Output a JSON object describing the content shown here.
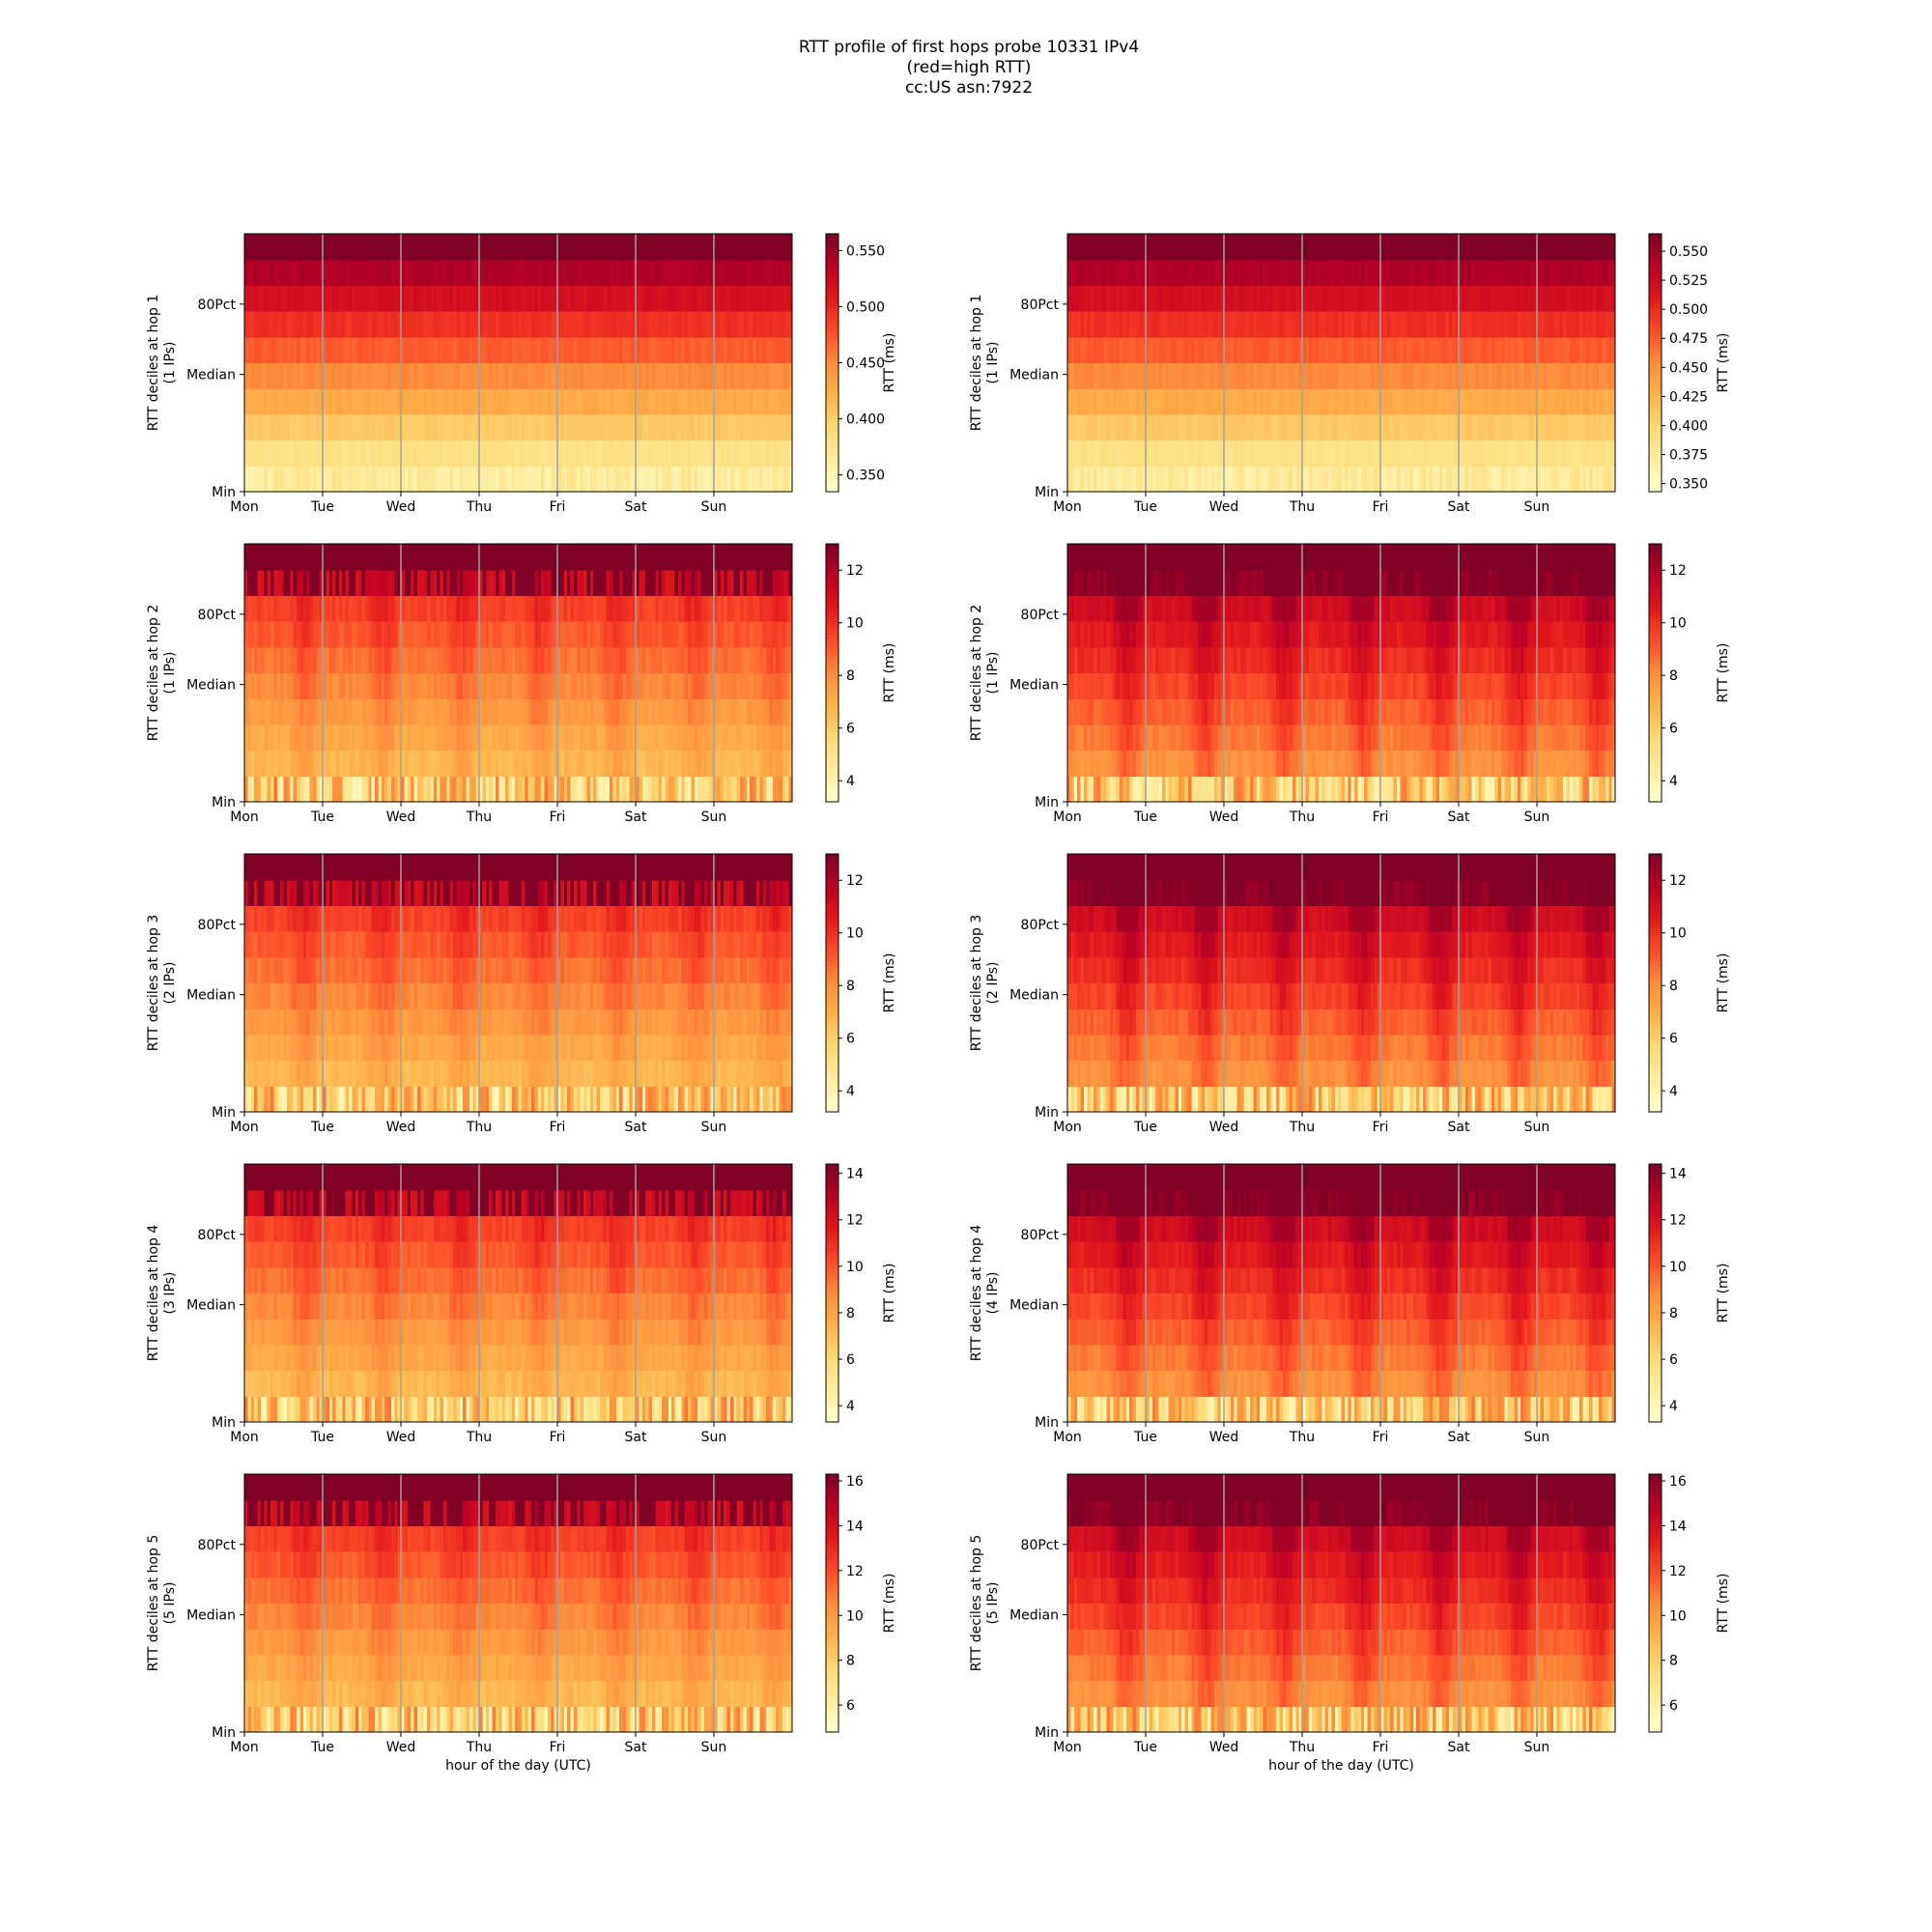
{
  "figure": {
    "title_lines": [
      "RTT profile of first hops probe 10331 IPv4",
      "(red=high RTT)",
      "cc:US asn:7922"
    ]
  },
  "chart_data": [
    {
      "type": "heatmap",
      "panel": "hop1-left",
      "ylabel_lines": [
        "RTT deciles at hop 1",
        "(1 IPs)"
      ],
      "y_ticks": [
        "Min",
        "Median",
        "80Pct"
      ],
      "x_ticks": [
        "Mon",
        "Tue",
        "Wed",
        "Thu",
        "Fri",
        "Sat",
        "Sun"
      ],
      "xlabel": "",
      "colorbar": {
        "label": "RTT (ms)",
        "ticks": [
          0.35,
          0.4,
          0.45,
          0.5,
          0.55
        ],
        "range": [
          0.335,
          0.565
        ]
      },
      "decile_rows": 10,
      "profile": "flat"
    },
    {
      "type": "heatmap",
      "panel": "hop1-right",
      "ylabel_lines": [
        "RTT deciles at hop 1",
        "(1 IPs)"
      ],
      "y_ticks": [
        "Min",
        "Median",
        "80Pct"
      ],
      "x_ticks": [
        "Mon",
        "Tue",
        "Wed",
        "Thu",
        "Fri",
        "Sat",
        "Sun"
      ],
      "xlabel": "",
      "colorbar": {
        "label": "RTT (ms)",
        "ticks": [
          0.35,
          0.375,
          0.4,
          0.425,
          0.45,
          0.475,
          0.5,
          0.525,
          0.55
        ],
        "range": [
          0.343,
          0.565
        ]
      },
      "decile_rows": 10,
      "profile": "flat"
    },
    {
      "type": "heatmap",
      "panel": "hop2-left",
      "ylabel_lines": [
        "RTT deciles at hop 2",
        "(1 IPs)"
      ],
      "y_ticks": [
        "Min",
        "Median",
        "80Pct"
      ],
      "x_ticks": [
        "Mon",
        "Tue",
        "Wed",
        "Thu",
        "Fri",
        "Sat",
        "Sun"
      ],
      "xlabel": "",
      "colorbar": {
        "label": "RTT (ms)",
        "ticks": [
          4,
          6,
          8,
          10,
          12
        ],
        "range": [
          3.2,
          13
        ]
      },
      "decile_rows": 10,
      "profile": "low"
    },
    {
      "type": "heatmap",
      "panel": "hop2-right",
      "ylabel_lines": [
        "RTT deciles at hop 2",
        "(1 IPs)"
      ],
      "y_ticks": [
        "Min",
        "Median",
        "80Pct"
      ],
      "x_ticks": [
        "Mon",
        "Tue",
        "Wed",
        "Thu",
        "Fri",
        "Sat",
        "Sun"
      ],
      "xlabel": "",
      "colorbar": {
        "label": "RTT (ms)",
        "ticks": [
          4,
          6,
          8,
          10,
          12
        ],
        "range": [
          3.2,
          13
        ]
      },
      "decile_rows": 10,
      "profile": "high"
    },
    {
      "type": "heatmap",
      "panel": "hop3-left",
      "ylabel_lines": [
        "RTT deciles at hop 3",
        "(2 IPs)"
      ],
      "y_ticks": [
        "Min",
        "Median",
        "80Pct"
      ],
      "x_ticks": [
        "Mon",
        "Tue",
        "Wed",
        "Thu",
        "Fri",
        "Sat",
        "Sun"
      ],
      "xlabel": "",
      "colorbar": {
        "label": "RTT (ms)",
        "ticks": [
          4,
          6,
          8,
          10,
          12
        ],
        "range": [
          3.2,
          13
        ]
      },
      "decile_rows": 10,
      "profile": "low"
    },
    {
      "type": "heatmap",
      "panel": "hop3-right",
      "ylabel_lines": [
        "RTT deciles at hop 3",
        "(2 IPs)"
      ],
      "y_ticks": [
        "Min",
        "Median",
        "80Pct"
      ],
      "x_ticks": [
        "Mon",
        "Tue",
        "Wed",
        "Thu",
        "Fri",
        "Sat",
        "Sun"
      ],
      "xlabel": "",
      "colorbar": {
        "label": "RTT (ms)",
        "ticks": [
          4,
          6,
          8,
          10,
          12
        ],
        "range": [
          3.2,
          13
        ]
      },
      "decile_rows": 10,
      "profile": "high"
    },
    {
      "type": "heatmap",
      "panel": "hop4-left",
      "ylabel_lines": [
        "RTT deciles at hop 4",
        "(3 IPs)"
      ],
      "y_ticks": [
        "Min",
        "Median",
        "80Pct"
      ],
      "x_ticks": [
        "Mon",
        "Tue",
        "Wed",
        "Thu",
        "Fri",
        "Sat",
        "Sun"
      ],
      "xlabel": "",
      "colorbar": {
        "label": "RTT (ms)",
        "ticks": [
          4,
          6,
          8,
          10,
          12,
          14
        ],
        "range": [
          3.3,
          14.4
        ]
      },
      "decile_rows": 10,
      "profile": "low"
    },
    {
      "type": "heatmap",
      "panel": "hop4-right",
      "ylabel_lines": [
        "RTT deciles at hop 4",
        "(4 IPs)"
      ],
      "y_ticks": [
        "Min",
        "Median",
        "80Pct"
      ],
      "x_ticks": [
        "Mon",
        "Tue",
        "Wed",
        "Thu",
        "Fri",
        "Sat",
        "Sun"
      ],
      "xlabel": "",
      "colorbar": {
        "label": "RTT (ms)",
        "ticks": [
          4,
          6,
          8,
          10,
          12,
          14
        ],
        "range": [
          3.3,
          14.4
        ]
      },
      "decile_rows": 10,
      "profile": "high"
    },
    {
      "type": "heatmap",
      "panel": "hop5-left",
      "ylabel_lines": [
        "RTT deciles at hop 5",
        "(5 IPs)"
      ],
      "y_ticks": [
        "Min",
        "Median",
        "80Pct"
      ],
      "x_ticks": [
        "Mon",
        "Tue",
        "Wed",
        "Thu",
        "Fri",
        "Sat",
        "Sun"
      ],
      "xlabel": "hour of the day (UTC)",
      "colorbar": {
        "label": "RTT (ms)",
        "ticks": [
          6,
          8,
          10,
          12,
          14,
          16
        ],
        "range": [
          4.8,
          16.3
        ]
      },
      "decile_rows": 10,
      "profile": "low"
    },
    {
      "type": "heatmap",
      "panel": "hop5-right",
      "ylabel_lines": [
        "RTT deciles at hop 5",
        "(5 IPs)"
      ],
      "y_ticks": [
        "Min",
        "Median",
        "80Pct"
      ],
      "x_ticks": [
        "Mon",
        "Tue",
        "Wed",
        "Thu",
        "Fri",
        "Sat",
        "Sun"
      ],
      "xlabel": "hour of the day (UTC)",
      "colorbar": {
        "label": "RTT (ms)",
        "ticks": [
          6,
          8,
          10,
          12,
          14,
          16
        ],
        "range": [
          4.8,
          16.3
        ]
      },
      "decile_rows": 10,
      "profile": "high"
    }
  ],
  "colors": {
    "colormap": [
      "#ffffcc",
      "#ffeda0",
      "#fed976",
      "#feb24c",
      "#fd8d3c",
      "#fc4e2a",
      "#e31a1c",
      "#bd0026",
      "#800026"
    ],
    "day_line": "#a0a0a0"
  }
}
